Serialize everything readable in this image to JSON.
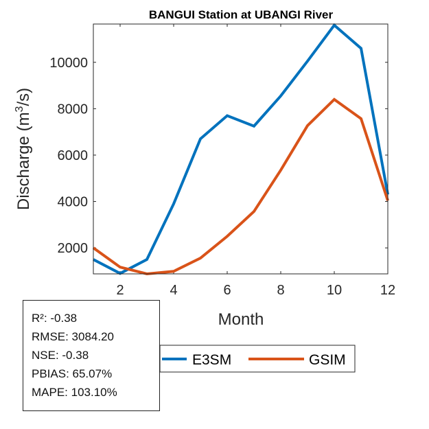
{
  "chart_data": {
    "type": "line",
    "title": "BANGUI  Station at  UBANGI  River",
    "xlabel": "Month",
    "ylabel": "Discharge (m³/s)",
    "xlim": [
      1,
      12
    ],
    "ylim": [
      880,
      11650
    ],
    "xticks": [
      2,
      4,
      6,
      8,
      10,
      12
    ],
    "yticks": [
      2000,
      4000,
      6000,
      8000,
      10000
    ],
    "grid": false,
    "legend_position": "bottom",
    "x": [
      1,
      2,
      3,
      4,
      5,
      6,
      7,
      8,
      9,
      10,
      11,
      12
    ],
    "series": [
      {
        "name": "E3SM",
        "color": "#0072BD",
        "values": [
          1500,
          900,
          1500,
          3900,
          6700,
          7700,
          7250,
          8550,
          10050,
          11600,
          10600,
          4300
        ]
      },
      {
        "name": "GSIM",
        "color": "#D95319",
        "values": [
          2000,
          1170,
          880,
          990,
          1560,
          2500,
          3570,
          5350,
          7270,
          8400,
          7570,
          4040
        ]
      }
    ]
  },
  "stats": {
    "r2": "R²: -0.38",
    "rmse": "RMSE: 3084.20",
    "nse": "NSE: -0.38",
    "pbias": "PBIAS: 65.07%",
    "mape": "MAPE: 103.10%"
  }
}
